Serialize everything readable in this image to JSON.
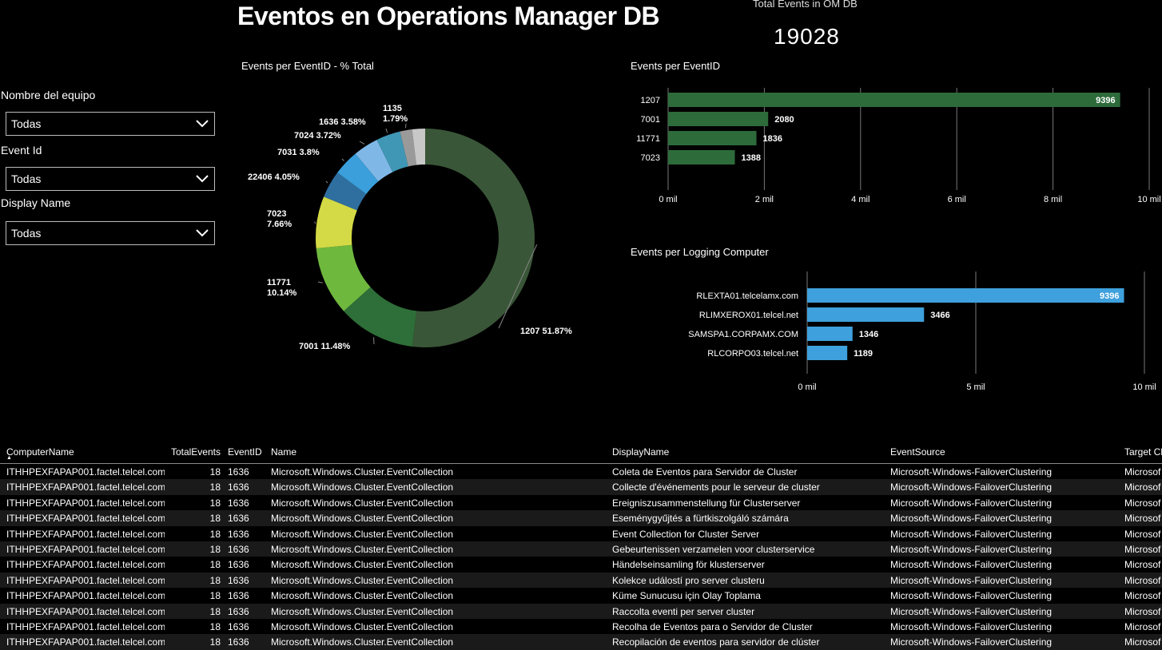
{
  "page": {
    "title": "Eventos en Operations Manager DB"
  },
  "kpi": {
    "label": "Total Events in OM DB",
    "value": "19028"
  },
  "slicers": [
    {
      "label": "Nombre del equipo",
      "value": "Todas"
    },
    {
      "label": "Event Id",
      "value": "Todas"
    },
    {
      "label": "Display Name",
      "value": "Todas"
    }
  ],
  "donut": {
    "title": "Events per EventID - % Total"
  },
  "bar_eventid": {
    "title": "Events per EventID"
  },
  "bar_computer": {
    "title": "Events per Logging Computer"
  },
  "colors": {
    "green_dark": "#2d6b3b",
    "blue": "#3ea0dc",
    "background": "#000000"
  },
  "chart_data": [
    {
      "type": "pie",
      "title": "Events per EventID - % Total",
      "labels": [
        "1207",
        "7001",
        "11771",
        "7023",
        "22406",
        "7031",
        "7024",
        "1636",
        "1135",
        ""
      ],
      "values": [
        51.87,
        11.48,
        10.14,
        7.66,
        4.05,
        3.8,
        3.72,
        3.58,
        1.79,
        1.91
      ],
      "data_labels": [
        "1207 51.87%",
        "7001 11.48%",
        "11771\n10.14%",
        "7023\n7.66%",
        "22406 4.05%",
        "7031 3.8%",
        "7024 3.72%",
        "1636 3.58%",
        "1135\n1.79%",
        ""
      ],
      "colors": [
        "#3a5638",
        "#2e6e38",
        "#6fb83e",
        "#d3da45",
        "#2f6fa0",
        "#3a9fdb",
        "#7fb8e6",
        "#3f97b5",
        "#9a9a9a",
        "#c8c8c8"
      ]
    },
    {
      "type": "bar",
      "title": "Events per EventID",
      "orientation": "horizontal",
      "categories": [
        "1207",
        "7001",
        "11771",
        "7023"
      ],
      "values": [
        9396,
        2080,
        1836,
        1388
      ],
      "xlim": [
        0,
        10000
      ],
      "x_ticks": [
        "0 mil",
        "2 mil",
        "4 mil",
        "6 mil",
        "8 mil",
        "10 mil"
      ],
      "grid": true,
      "color": "#2d6b3b"
    },
    {
      "type": "bar",
      "title": "Events per Logging Computer",
      "orientation": "horizontal",
      "categories": [
        "RLEXTA01.telcelamx.com",
        "RLIMXEROX01.telcel.net",
        "SAMSPA1.CORPAMX.COM",
        "RLCORPO03.telcel.net"
      ],
      "values": [
        9396,
        3466,
        1346,
        1189
      ],
      "xlim": [
        0,
        10000
      ],
      "x_ticks": [
        "0 mil",
        "5 mil",
        "10 mil"
      ],
      "grid": true,
      "color": "#3ea0dc"
    }
  ],
  "table": {
    "columns": [
      "ComputerName",
      "TotalEvents",
      "EventID",
      "Name",
      "DisplayName",
      "EventSource",
      "Target Cl"
    ],
    "rows": [
      [
        "ITHHPEXFAPAP001.factel.telcel.com",
        "18",
        "1636",
        "Microsoft.Windows.Cluster.EventCollection",
        "Coleta de Eventos para Servidor de Cluster",
        "Microsoft-Windows-FailoverClustering",
        "Microsof"
      ],
      [
        "ITHHPEXFAPAP001.factel.telcel.com",
        "18",
        "1636",
        "Microsoft.Windows.Cluster.EventCollection",
        "Collecte d'événements pour le serveur de cluster",
        "Microsoft-Windows-FailoverClustering",
        "Microsof"
      ],
      [
        "ITHHPEXFAPAP001.factel.telcel.com",
        "18",
        "1636",
        "Microsoft.Windows.Cluster.EventCollection",
        "Ereigniszusammenstellung für Clusterserver",
        "Microsoft-Windows-FailoverClustering",
        "Microsof"
      ],
      [
        "ITHHPEXFAPAP001.factel.telcel.com",
        "18",
        "1636",
        "Microsoft.Windows.Cluster.EventCollection",
        "Eseménygyűjtés a fürtkiszolgáló számára",
        "Microsoft-Windows-FailoverClustering",
        "Microsof"
      ],
      [
        "ITHHPEXFAPAP001.factel.telcel.com",
        "18",
        "1636",
        "Microsoft.Windows.Cluster.EventCollection",
        "Event Collection for Cluster Server",
        "Microsoft-Windows-FailoverClustering",
        "Microsof"
      ],
      [
        "ITHHPEXFAPAP001.factel.telcel.com",
        "18",
        "1636",
        "Microsoft.Windows.Cluster.EventCollection",
        "Gebeurtenissen verzamelen voor clusterservice",
        "Microsoft-Windows-FailoverClustering",
        "Microsof"
      ],
      [
        "ITHHPEXFAPAP001.factel.telcel.com",
        "18",
        "1636",
        "Microsoft.Windows.Cluster.EventCollection",
        "Händelseinsamling för klusterserver",
        "Microsoft-Windows-FailoverClustering",
        "Microsof"
      ],
      [
        "ITHHPEXFAPAP001.factel.telcel.com",
        "18",
        "1636",
        "Microsoft.Windows.Cluster.EventCollection",
        "Kolekce událostí pro server clusteru",
        "Microsoft-Windows-FailoverClustering",
        "Microsof"
      ],
      [
        "ITHHPEXFAPAP001.factel.telcel.com",
        "18",
        "1636",
        "Microsoft.Windows.Cluster.EventCollection",
        "Küme Sunucusu için Olay Toplama",
        "Microsoft-Windows-FailoverClustering",
        "Microsof"
      ],
      [
        "ITHHPEXFAPAP001.factel.telcel.com",
        "18",
        "1636",
        "Microsoft.Windows.Cluster.EventCollection",
        "Raccolta eventi per server cluster",
        "Microsoft-Windows-FailoverClustering",
        "Microsof"
      ],
      [
        "ITHHPEXFAPAP001.factel.telcel.com",
        "18",
        "1636",
        "Microsoft.Windows.Cluster.EventCollection",
        "Recolha de Eventos para o Servidor de Cluster",
        "Microsoft-Windows-FailoverClustering",
        "Microsof"
      ],
      [
        "ITHHPEXFAPAP001.factel.telcel.com",
        "18",
        "1636",
        "Microsoft.Windows.Cluster.EventCollection",
        "Recopilación de eventos para servidor de clúster",
        "Microsoft-Windows-FailoverClustering",
        "Microsof"
      ]
    ]
  }
}
